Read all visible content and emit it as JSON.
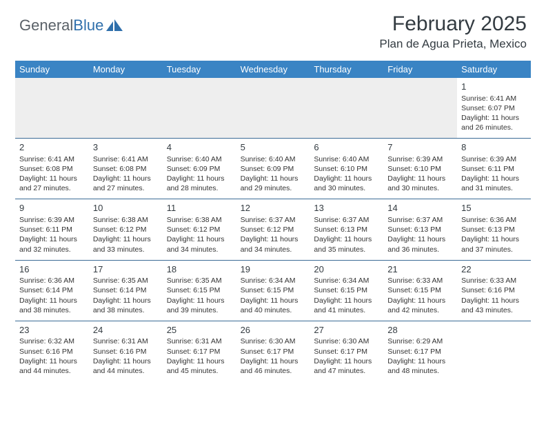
{
  "logo": {
    "first": "General",
    "second": "Blue"
  },
  "title": "February 2025",
  "subtitle": "Plan de Agua Prieta, Mexico",
  "colors": {
    "header_bg": "#3a84c4",
    "divider": "#3a6a95",
    "blank_row": "#eeeeee",
    "text": "#333333",
    "logo_accent": "#2f6fab"
  },
  "typography": {
    "title_fontsize": 30,
    "subtitle_fontsize": 17,
    "weekday_fontsize": 13,
    "daynum_fontsize": 13,
    "body_fontsize": 10.5
  },
  "weekdays": [
    "Sunday",
    "Monday",
    "Tuesday",
    "Wednesday",
    "Thursday",
    "Friday",
    "Saturday"
  ],
  "weeks": [
    [
      null,
      null,
      null,
      null,
      null,
      null,
      {
        "n": "1",
        "sunrise": "6:41 AM",
        "sunset": "6:07 PM",
        "daylight": "11 hours and 26 minutes."
      }
    ],
    [
      {
        "n": "2",
        "sunrise": "6:41 AM",
        "sunset": "6:08 PM",
        "daylight": "11 hours and 27 minutes."
      },
      {
        "n": "3",
        "sunrise": "6:41 AM",
        "sunset": "6:08 PM",
        "daylight": "11 hours and 27 minutes."
      },
      {
        "n": "4",
        "sunrise": "6:40 AM",
        "sunset": "6:09 PM",
        "daylight": "11 hours and 28 minutes."
      },
      {
        "n": "5",
        "sunrise": "6:40 AM",
        "sunset": "6:09 PM",
        "daylight": "11 hours and 29 minutes."
      },
      {
        "n": "6",
        "sunrise": "6:40 AM",
        "sunset": "6:10 PM",
        "daylight": "11 hours and 30 minutes."
      },
      {
        "n": "7",
        "sunrise": "6:39 AM",
        "sunset": "6:10 PM",
        "daylight": "11 hours and 30 minutes."
      },
      {
        "n": "8",
        "sunrise": "6:39 AM",
        "sunset": "6:11 PM",
        "daylight": "11 hours and 31 minutes."
      }
    ],
    [
      {
        "n": "9",
        "sunrise": "6:39 AM",
        "sunset": "6:11 PM",
        "daylight": "11 hours and 32 minutes."
      },
      {
        "n": "10",
        "sunrise": "6:38 AM",
        "sunset": "6:12 PM",
        "daylight": "11 hours and 33 minutes."
      },
      {
        "n": "11",
        "sunrise": "6:38 AM",
        "sunset": "6:12 PM",
        "daylight": "11 hours and 34 minutes."
      },
      {
        "n": "12",
        "sunrise": "6:37 AM",
        "sunset": "6:12 PM",
        "daylight": "11 hours and 34 minutes."
      },
      {
        "n": "13",
        "sunrise": "6:37 AM",
        "sunset": "6:13 PM",
        "daylight": "11 hours and 35 minutes."
      },
      {
        "n": "14",
        "sunrise": "6:37 AM",
        "sunset": "6:13 PM",
        "daylight": "11 hours and 36 minutes."
      },
      {
        "n": "15",
        "sunrise": "6:36 AM",
        "sunset": "6:13 PM",
        "daylight": "11 hours and 37 minutes."
      }
    ],
    [
      {
        "n": "16",
        "sunrise": "6:36 AM",
        "sunset": "6:14 PM",
        "daylight": "11 hours and 38 minutes."
      },
      {
        "n": "17",
        "sunrise": "6:35 AM",
        "sunset": "6:14 PM",
        "daylight": "11 hours and 38 minutes."
      },
      {
        "n": "18",
        "sunrise": "6:35 AM",
        "sunset": "6:15 PM",
        "daylight": "11 hours and 39 minutes."
      },
      {
        "n": "19",
        "sunrise": "6:34 AM",
        "sunset": "6:15 PM",
        "daylight": "11 hours and 40 minutes."
      },
      {
        "n": "20",
        "sunrise": "6:34 AM",
        "sunset": "6:15 PM",
        "daylight": "11 hours and 41 minutes."
      },
      {
        "n": "21",
        "sunrise": "6:33 AM",
        "sunset": "6:15 PM",
        "daylight": "11 hours and 42 minutes."
      },
      {
        "n": "22",
        "sunrise": "6:33 AM",
        "sunset": "6:16 PM",
        "daylight": "11 hours and 43 minutes."
      }
    ],
    [
      {
        "n": "23",
        "sunrise": "6:32 AM",
        "sunset": "6:16 PM",
        "daylight": "11 hours and 44 minutes."
      },
      {
        "n": "24",
        "sunrise": "6:31 AM",
        "sunset": "6:16 PM",
        "daylight": "11 hours and 44 minutes."
      },
      {
        "n": "25",
        "sunrise": "6:31 AM",
        "sunset": "6:17 PM",
        "daylight": "11 hours and 45 minutes."
      },
      {
        "n": "26",
        "sunrise": "6:30 AM",
        "sunset": "6:17 PM",
        "daylight": "11 hours and 46 minutes."
      },
      {
        "n": "27",
        "sunrise": "6:30 AM",
        "sunset": "6:17 PM",
        "daylight": "11 hours and 47 minutes."
      },
      {
        "n": "28",
        "sunrise": "6:29 AM",
        "sunset": "6:17 PM",
        "daylight": "11 hours and 48 minutes."
      },
      null
    ]
  ],
  "labels": {
    "sunrise": "Sunrise:",
    "sunset": "Sunset:",
    "daylight": "Daylight:"
  }
}
